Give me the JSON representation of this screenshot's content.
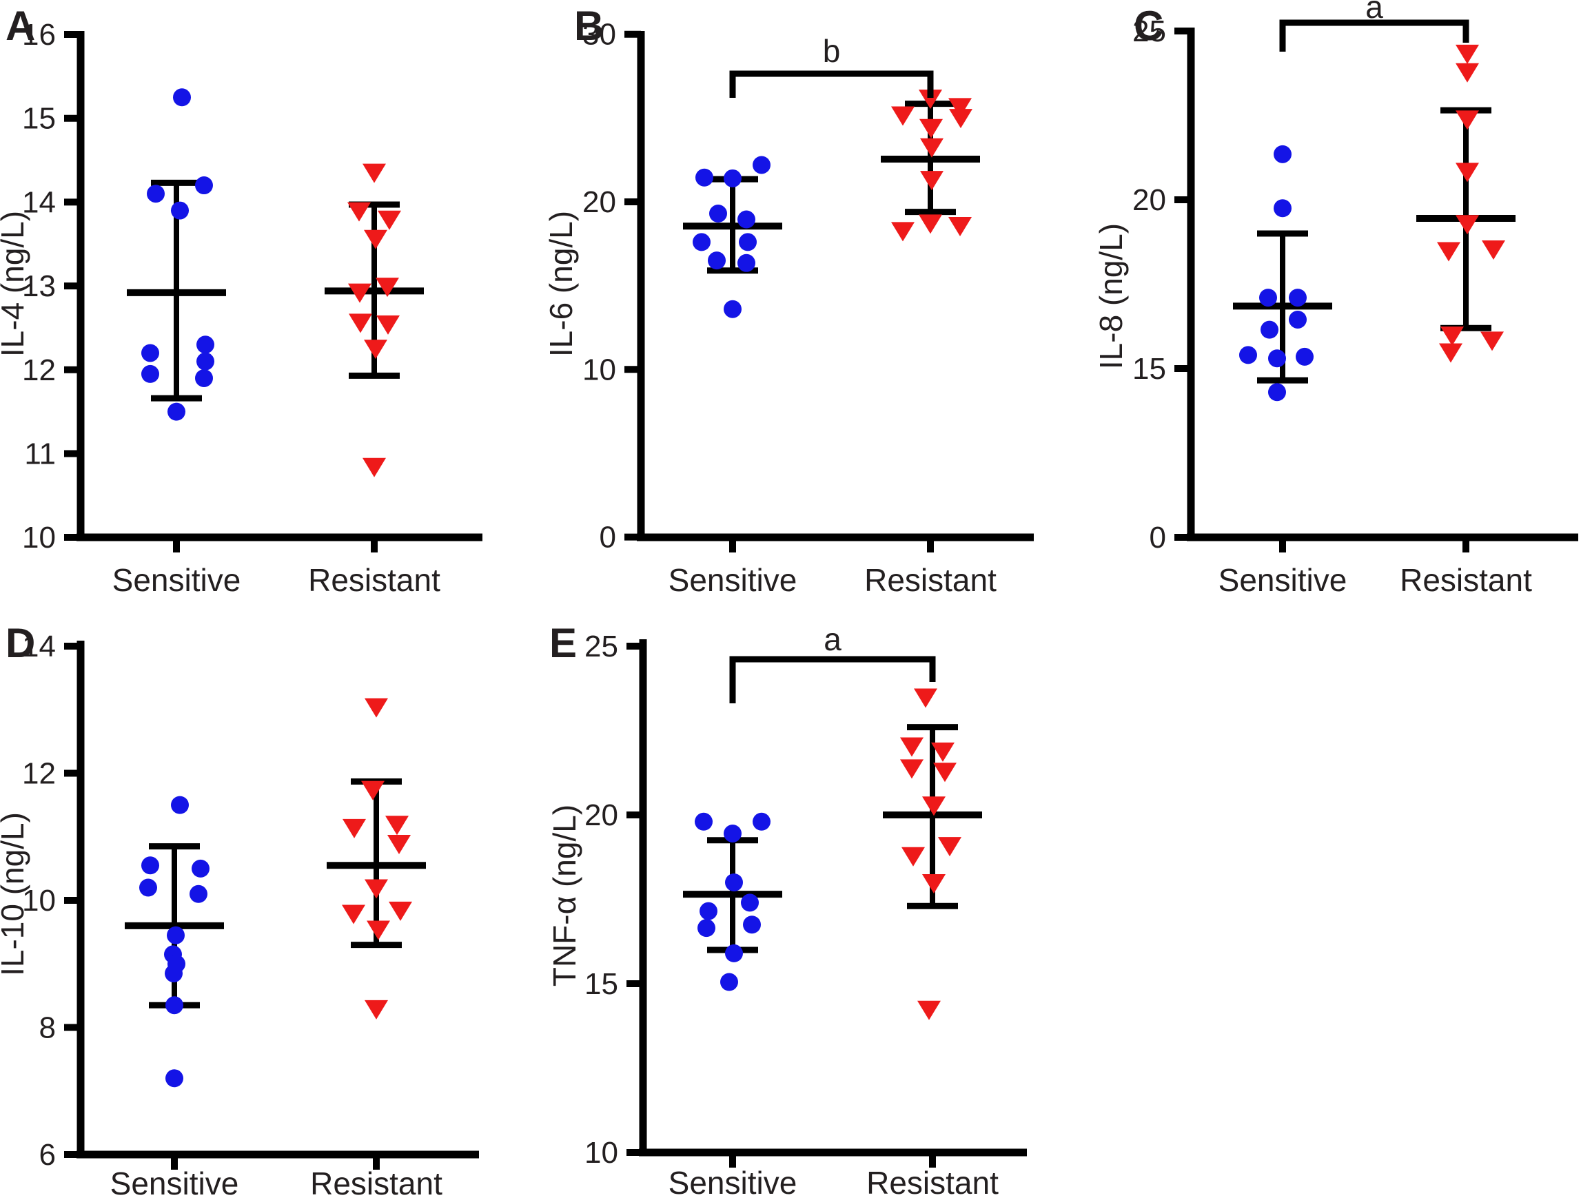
{
  "figure": {
    "background": "#ffffff",
    "colors": {
      "sensitive_marker": "#1414e6",
      "resistant_marker": "#ee1a1a",
      "bars_and_axes": "#000000",
      "text": "#231f20"
    },
    "group_labels": [
      "Sensitive",
      "Resistant"
    ]
  },
  "chart_data": [
    {
      "panel": "A",
      "panel_label": "A",
      "type": "scatter",
      "ylabel": "IL-4 (ng/L)",
      "categories": [
        "Sensitive",
        "Resistant"
      ],
      "yticks": [
        16,
        15,
        14,
        13,
        12,
        11,
        10
      ],
      "ylim": [
        10,
        16
      ],
      "significance": null,
      "series": [
        {
          "name": "Sensitive",
          "marker": "circle",
          "color": "#1414e6",
          "values": [
            15.25,
            14.2,
            14.1,
            13.9,
            12.3,
            12.2,
            12.1,
            11.95,
            11.9,
            11.5
          ],
          "jitter_dx": [
            8,
            40,
            -30,
            5,
            42,
            -38,
            42,
            -38,
            40,
            0
          ],
          "mean": 12.92,
          "sd_upper": 14.23,
          "sd_lower": 11.66
        },
        {
          "name": "Resistant",
          "marker": "triangle-down",
          "color": "#ee1a1a",
          "values": [
            14.36,
            13.9,
            13.8,
            13.57,
            13.0,
            12.93,
            12.57,
            12.55,
            12.26,
            10.85
          ],
          "jitter_dx": [
            0,
            -22,
            22,
            2,
            19,
            -21,
            -20,
            20,
            2,
            0
          ],
          "mean": 12.94,
          "sd_upper": 13.97,
          "sd_lower": 11.93
        }
      ]
    },
    {
      "panel": "B",
      "panel_label": "B",
      "type": "scatter",
      "ylabel": "IL-6 (ng/L)",
      "categories": [
        "Sensitive",
        "Resistant"
      ],
      "yticks": [
        30,
        20,
        10,
        0
      ],
      "ylim": [
        0,
        30
      ],
      "significance": {
        "label": "b",
        "between": [
          "Sensitive",
          "Resistant"
        ]
      },
      "series": [
        {
          "name": "Sensitive",
          "marker": "circle",
          "color": "#1414e6",
          "values": [
            22.2,
            21.45,
            21.4,
            19.3,
            18.95,
            17.6,
            17.6,
            16.5,
            16.35,
            13.6
          ],
          "jitter_dx": [
            42,
            -41,
            0,
            -21,
            20,
            -45,
            22,
            -23,
            20,
            0
          ],
          "mean": 18.55,
          "sd_upper": 21.35,
          "sd_lower": 15.9
        },
        {
          "name": "Resistant",
          "marker": "triangle-down",
          "color": "#ee1a1a",
          "values": [
            26.2,
            25.7,
            25.2,
            25.05,
            24.45,
            23.3,
            21.35,
            18.75,
            18.6,
            18.3
          ],
          "jitter_dx": [
            0,
            43,
            -40,
            44,
            1,
            2,
            2,
            0,
            43,
            -40
          ],
          "mean": 22.55,
          "sd_upper": 25.85,
          "sd_lower": 19.4
        }
      ]
    },
    {
      "panel": "C",
      "panel_label": "C",
      "type": "scatter",
      "ylabel": "IL-8 (ng/L)",
      "categories": [
        "Sensitive",
        "Resistant"
      ],
      "yticks": [
        25,
        20,
        15,
        0
      ],
      "ylim": [
        0,
        25
      ],
      "axis_truncated_below": 15,
      "significance": {
        "label": "a",
        "between": [
          "Sensitive",
          "Resistant"
        ]
      },
      "series": [
        {
          "name": "Sensitive",
          "marker": "circle",
          "color": "#1414e6",
          "values": [
            21.35,
            19.75,
            17.1,
            17.1,
            16.45,
            16.15,
            15.4,
            15.3,
            15.35,
            14.3
          ],
          "jitter_dx": [
            0,
            0,
            -21,
            22,
            22,
            -19,
            -50,
            -8,
            32,
            -8
          ],
          "mean": 16.85,
          "sd_upper": 19.0,
          "sd_lower": 14.65
        },
        {
          "name": "Resistant",
          "marker": "triangle-down",
          "color": "#ee1a1a",
          "values": [
            24.35,
            23.8,
            22.4,
            20.85,
            19.3,
            18.55,
            18.5,
            16.0,
            15.85,
            15.5
          ],
          "jitter_dx": [
            2,
            2,
            2,
            2,
            2,
            40,
            -25,
            -20,
            38,
            -22
          ],
          "mean": 19.45,
          "sd_upper": 22.65,
          "sd_lower": 16.2
        }
      ]
    },
    {
      "panel": "D",
      "panel_label": "D",
      "type": "scatter",
      "ylabel": "IL-10 (ng/L)",
      "categories": [
        "Sensitive",
        "Resistant"
      ],
      "yticks": [
        14,
        12,
        10,
        8,
        6
      ],
      "ylim": [
        6,
        14
      ],
      "significance": null,
      "series": [
        {
          "name": "Sensitive",
          "marker": "circle",
          "color": "#1414e6",
          "values": [
            11.5,
            10.55,
            10.5,
            10.2,
            10.1,
            9.45,
            9.15,
            9.0,
            8.85,
            8.35,
            7.2
          ],
          "jitter_dx": [
            8,
            -35,
            38,
            -38,
            35,
            2,
            -2,
            3,
            -1,
            0,
            0
          ],
          "mean": 9.6,
          "sd_upper": 10.85,
          "sd_lower": 8.35
        },
        {
          "name": "Resistant",
          "marker": "triangle-down",
          "color": "#ee1a1a",
          "values": [
            13.05,
            11.75,
            11.2,
            11.15,
            10.9,
            10.2,
            9.85,
            9.8,
            9.55,
            8.3
          ],
          "jitter_dx": [
            0,
            -5,
            30,
            -32,
            33,
            0,
            35,
            -33,
            3,
            0
          ],
          "mean": 10.55,
          "sd_upper": 11.87,
          "sd_lower": 9.3
        }
      ]
    },
    {
      "panel": "E",
      "panel_label": "E",
      "type": "scatter",
      "ylabel": "TNF-α (ng/L)",
      "categories": [
        "Sensitive",
        "Resistant"
      ],
      "yticks": [
        25,
        20,
        15,
        10
      ],
      "ylim": [
        10,
        25
      ],
      "significance": {
        "label": "a",
        "between": [
          "Sensitive",
          "Resistant"
        ]
      },
      "series": [
        {
          "name": "Sensitive",
          "marker": "circle",
          "color": "#1414e6",
          "values": [
            19.8,
            19.8,
            19.45,
            18.0,
            17.4,
            17.15,
            16.75,
            16.65,
            15.9,
            15.05
          ],
          "jitter_dx": [
            -42,
            42,
            0,
            2,
            25,
            -35,
            28,
            -38,
            2,
            -5
          ],
          "mean": 17.65,
          "sd_upper": 19.25,
          "sd_lower": 16.0
        },
        {
          "name": "Resistant",
          "marker": "triangle-down",
          "color": "#ee1a1a",
          "values": [
            23.5,
            22.05,
            21.9,
            21.4,
            21.3,
            20.3,
            19.1,
            18.8,
            18.0,
            14.25
          ],
          "jitter_dx": [
            -10,
            -30,
            15,
            -30,
            18,
            2,
            25,
            -28,
            2,
            -5
          ],
          "mean": 20.0,
          "sd_upper": 22.6,
          "sd_lower": 17.3
        }
      ]
    }
  ]
}
